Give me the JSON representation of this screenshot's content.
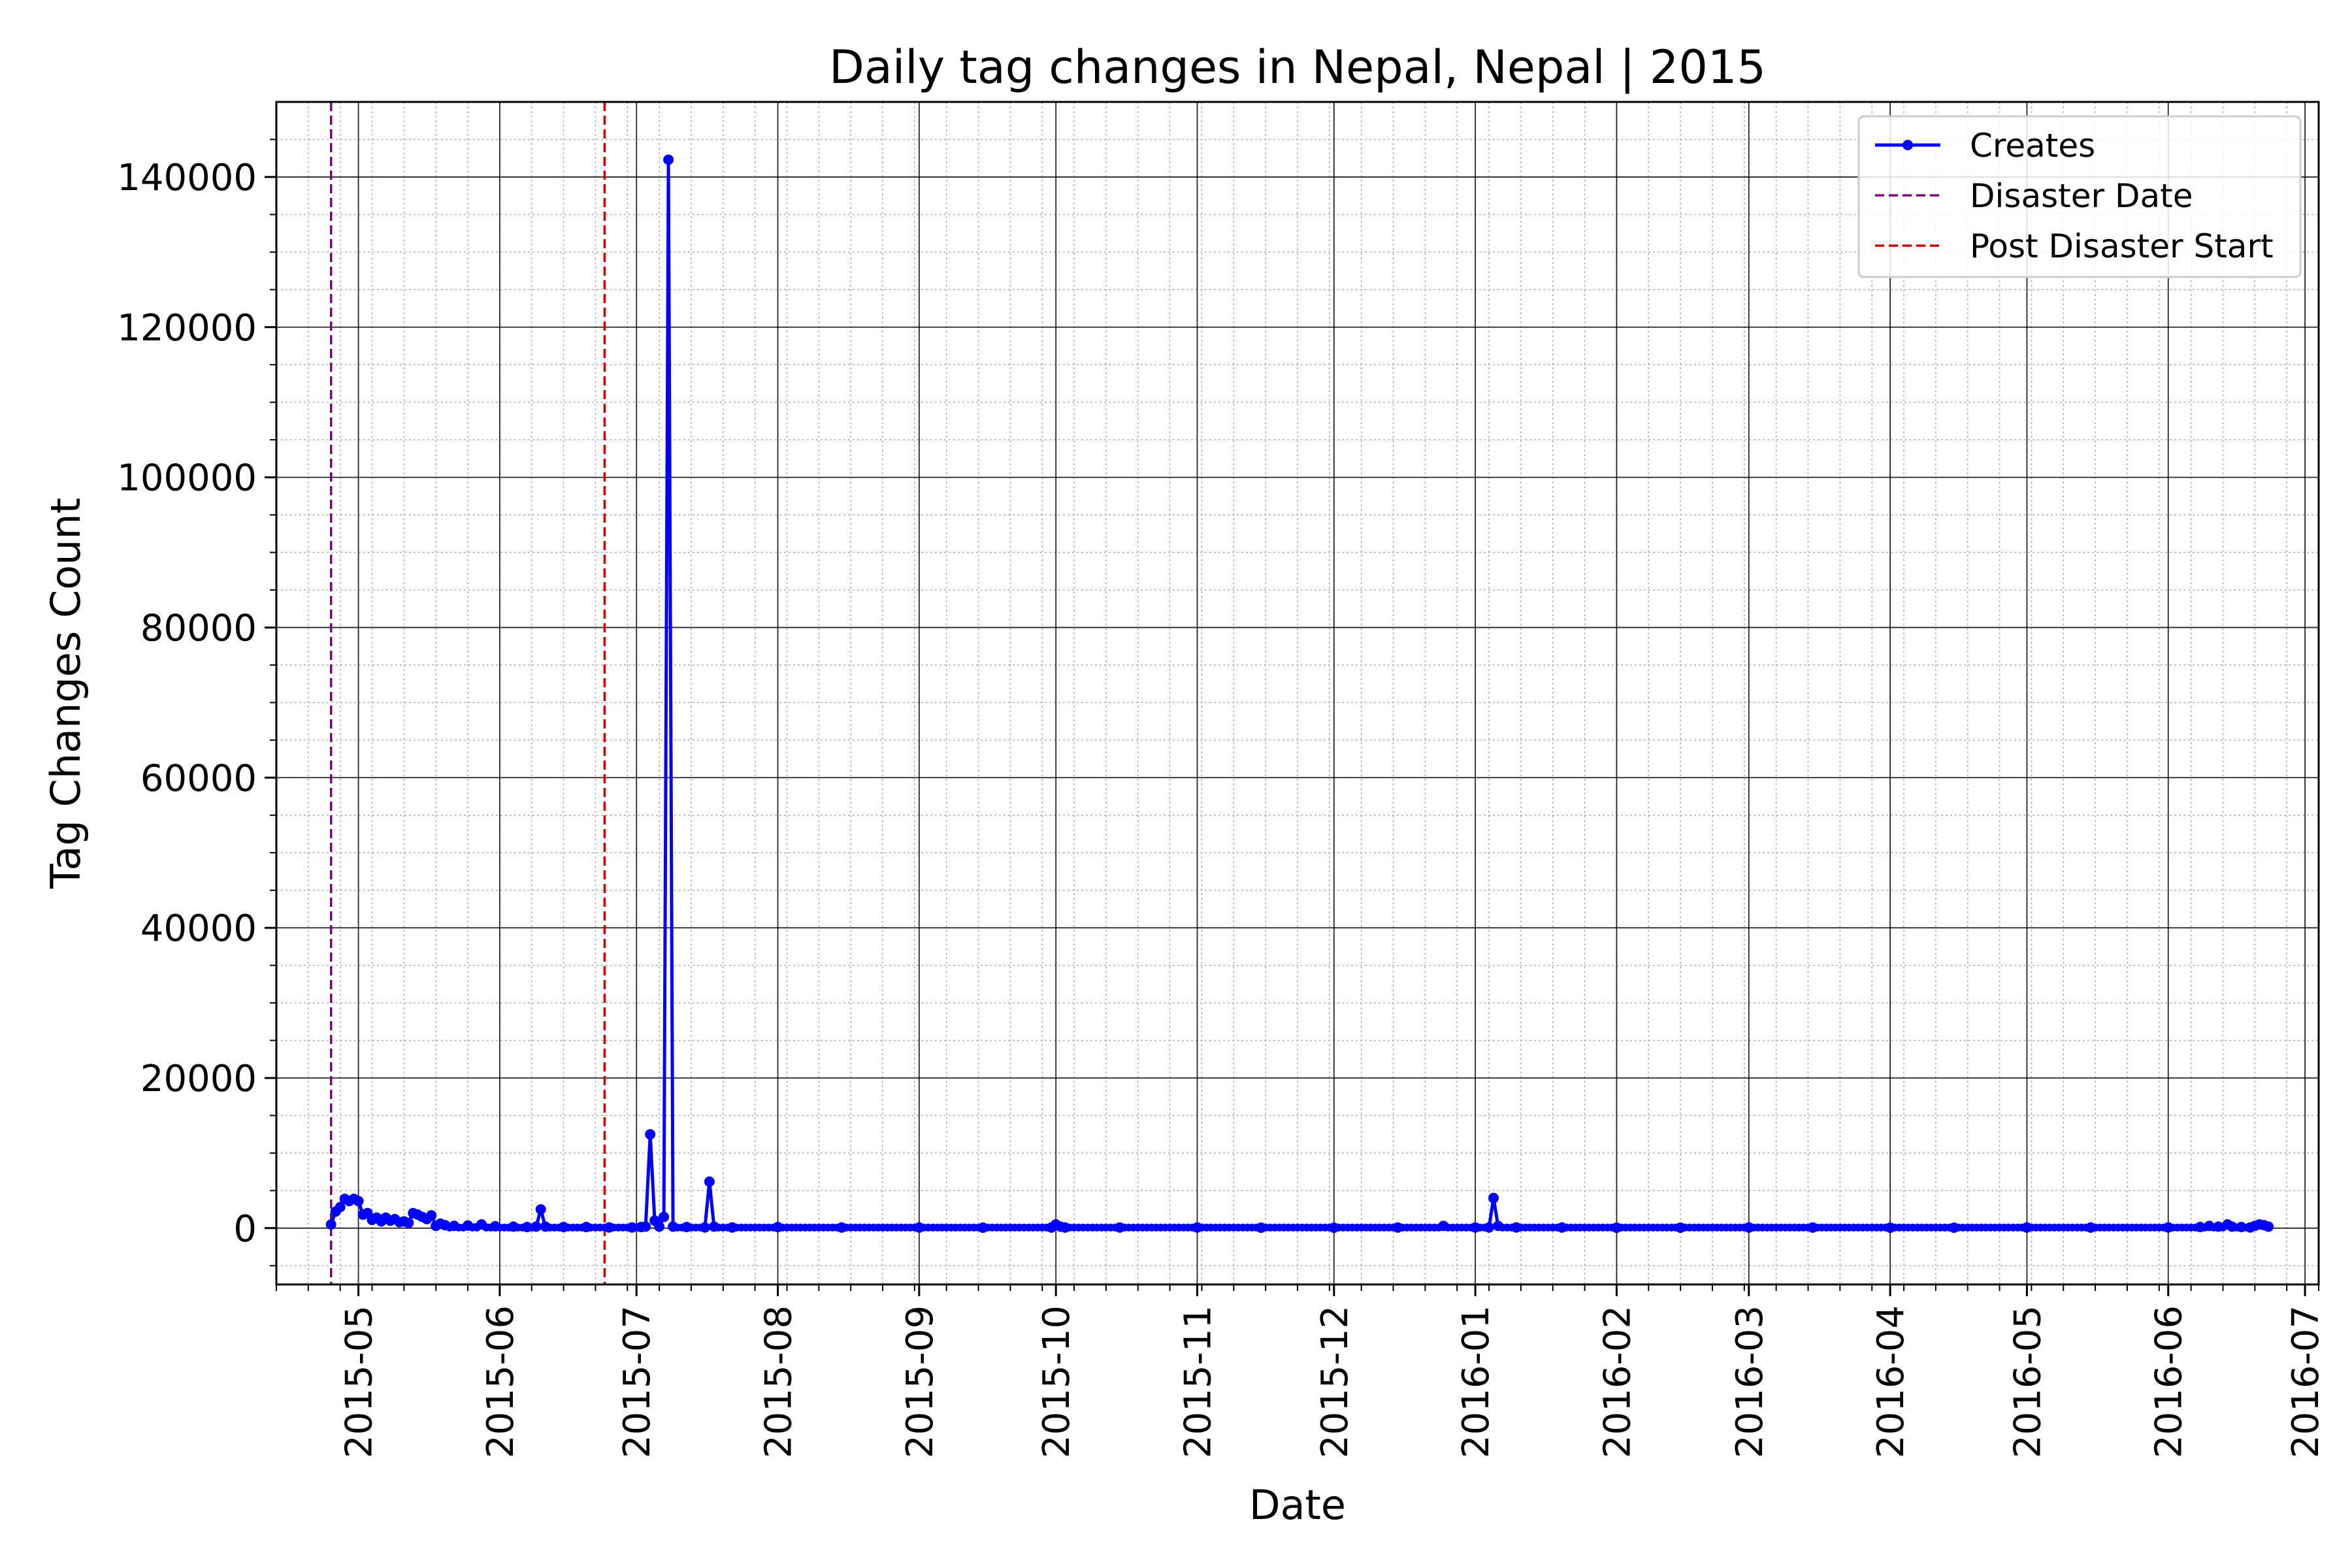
{
  "chart_data": {
    "type": "line",
    "title": "Daily tag changes in Nepal, Nepal | 2015",
    "xlabel": "Date",
    "ylabel": "Tag Changes Count",
    "xlim": [
      "2015-04-13",
      "2016-07-04"
    ],
    "ylim": [
      -7500,
      150000
    ],
    "x_ticks": [
      "2015-05",
      "2015-06",
      "2015-07",
      "2015-08",
      "2015-09",
      "2015-10",
      "2015-11",
      "2015-12",
      "2016-01",
      "2016-02",
      "2016-03",
      "2016-04",
      "2016-05",
      "2016-06",
      "2016-07"
    ],
    "y_ticks": [
      "0",
      "20000",
      "40000",
      "60000",
      "80000",
      "100000",
      "120000",
      "140000"
    ],
    "grid": true,
    "minor_grid": true,
    "legend_position": "top-right",
    "series": [
      {
        "name": "Creates",
        "color": "#0000ff",
        "marker": "circle",
        "x": [
          "2015-04-25",
          "2015-04-26",
          "2015-04-27",
          "2015-04-28",
          "2015-04-29",
          "2015-04-30",
          "2015-05-01",
          "2015-05-02",
          "2015-05-03",
          "2015-05-04",
          "2015-05-05",
          "2015-05-06",
          "2015-05-07",
          "2015-05-08",
          "2015-05-09",
          "2015-05-10",
          "2015-05-11",
          "2015-05-12",
          "2015-05-13",
          "2015-05-14",
          "2015-05-15",
          "2015-05-16",
          "2015-05-17",
          "2015-05-18",
          "2015-05-19",
          "2015-05-20",
          "2015-05-22",
          "2015-05-25",
          "2015-05-28",
          "2015-05-31",
          "2015-06-04",
          "2015-06-07",
          "2015-06-09",
          "2015-06-10",
          "2015-06-11",
          "2015-06-15",
          "2015-06-20",
          "2015-06-25",
          "2015-06-30",
          "2015-07-02",
          "2015-07-03",
          "2015-07-04",
          "2015-07-05",
          "2015-07-06",
          "2015-07-07",
          "2015-07-08",
          "2015-07-09",
          "2015-07-12",
          "2015-07-16",
          "2015-07-17",
          "2015-07-18",
          "2015-07-22",
          "2015-08-01",
          "2015-08-15",
          "2015-09-01",
          "2015-09-15",
          "2015-09-30",
          "2015-10-01",
          "2015-10-02",
          "2015-10-03",
          "2015-10-15",
          "2015-11-01",
          "2015-11-15",
          "2015-12-01",
          "2015-12-15",
          "2015-12-25",
          "2016-01-01",
          "2016-01-04",
          "2016-01-05",
          "2016-01-06",
          "2016-01-10",
          "2016-01-20",
          "2016-02-01",
          "2016-02-15",
          "2016-03-01",
          "2016-03-15",
          "2016-04-01",
          "2016-04-15",
          "2016-05-01",
          "2016-05-15",
          "2016-06-01",
          "2016-06-08",
          "2016-06-10",
          "2016-06-12",
          "2016-06-14",
          "2016-06-15",
          "2016-06-17",
          "2016-06-19",
          "2016-06-20",
          "2016-06-21",
          "2016-06-22",
          "2016-06-23"
        ],
        "y": [
          500,
          2200,
          2800,
          3900,
          3600,
          3900,
          3600,
          1800,
          2000,
          1100,
          1400,
          900,
          1400,
          1000,
          1200,
          800,
          900,
          700,
          2000,
          1800,
          1500,
          1200,
          1700,
          300,
          600,
          400,
          300,
          350,
          500,
          250,
          200,
          150,
          200,
          2500,
          200,
          150,
          150,
          100,
          100,
          150,
          200,
          12500,
          1000,
          200,
          1500,
          142300,
          200,
          150,
          100,
          6200,
          200,
          100,
          150,
          80,
          80,
          60,
          80,
          500,
          200,
          80,
          80,
          80,
          60,
          60,
          80,
          300,
          80,
          100,
          4000,
          300,
          100,
          80,
          60,
          60,
          80,
          80,
          60,
          60,
          80,
          80,
          100,
          150,
          300,
          200,
          500,
          200,
          150,
          100,
          300,
          500,
          400,
          200
        ]
      }
    ],
    "vlines": [
      {
        "name": "Disaster Date",
        "x": "2015-04-25",
        "color": "#800080",
        "style": "dashed"
      },
      {
        "name": "Post Disaster Start",
        "x": "2015-06-24",
        "color": "#cc0000",
        "style": "dashed"
      }
    ]
  }
}
